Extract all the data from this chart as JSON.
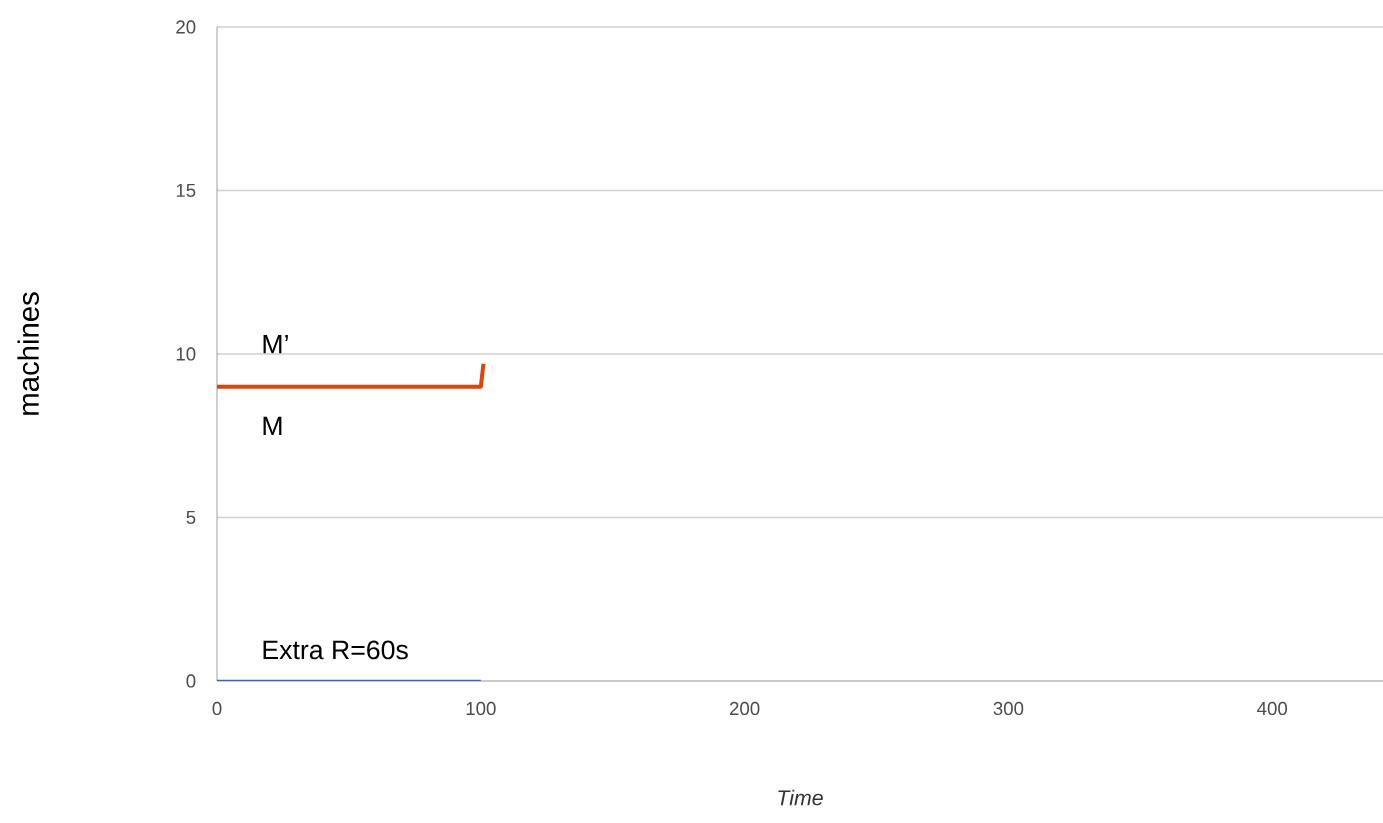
{
  "chart_data": {
    "type": "line",
    "xlabel": "Time",
    "ylabel": "machines",
    "series": [
      {
        "color": "#e0440e",
        "x": [
          0,
          100,
          101
        ],
        "values": [
          9,
          9,
          9.7
        ]
      },
      {
        "color": "#3366cc",
        "x": [
          0,
          100
        ],
        "values": [
          0,
          0
        ]
      }
    ],
    "xlim": [
      0,
      442
    ],
    "ylim": [
      0,
      20
    ],
    "xticks": [
      0,
      100,
      200,
      300,
      400
    ],
    "yticks": [
      0,
      5,
      10,
      15,
      20
    ],
    "grid": "y",
    "marker": "none",
    "line_style": "solid",
    "annotations": [
      "M’",
      "M",
      "Extra R=60s"
    ]
  }
}
